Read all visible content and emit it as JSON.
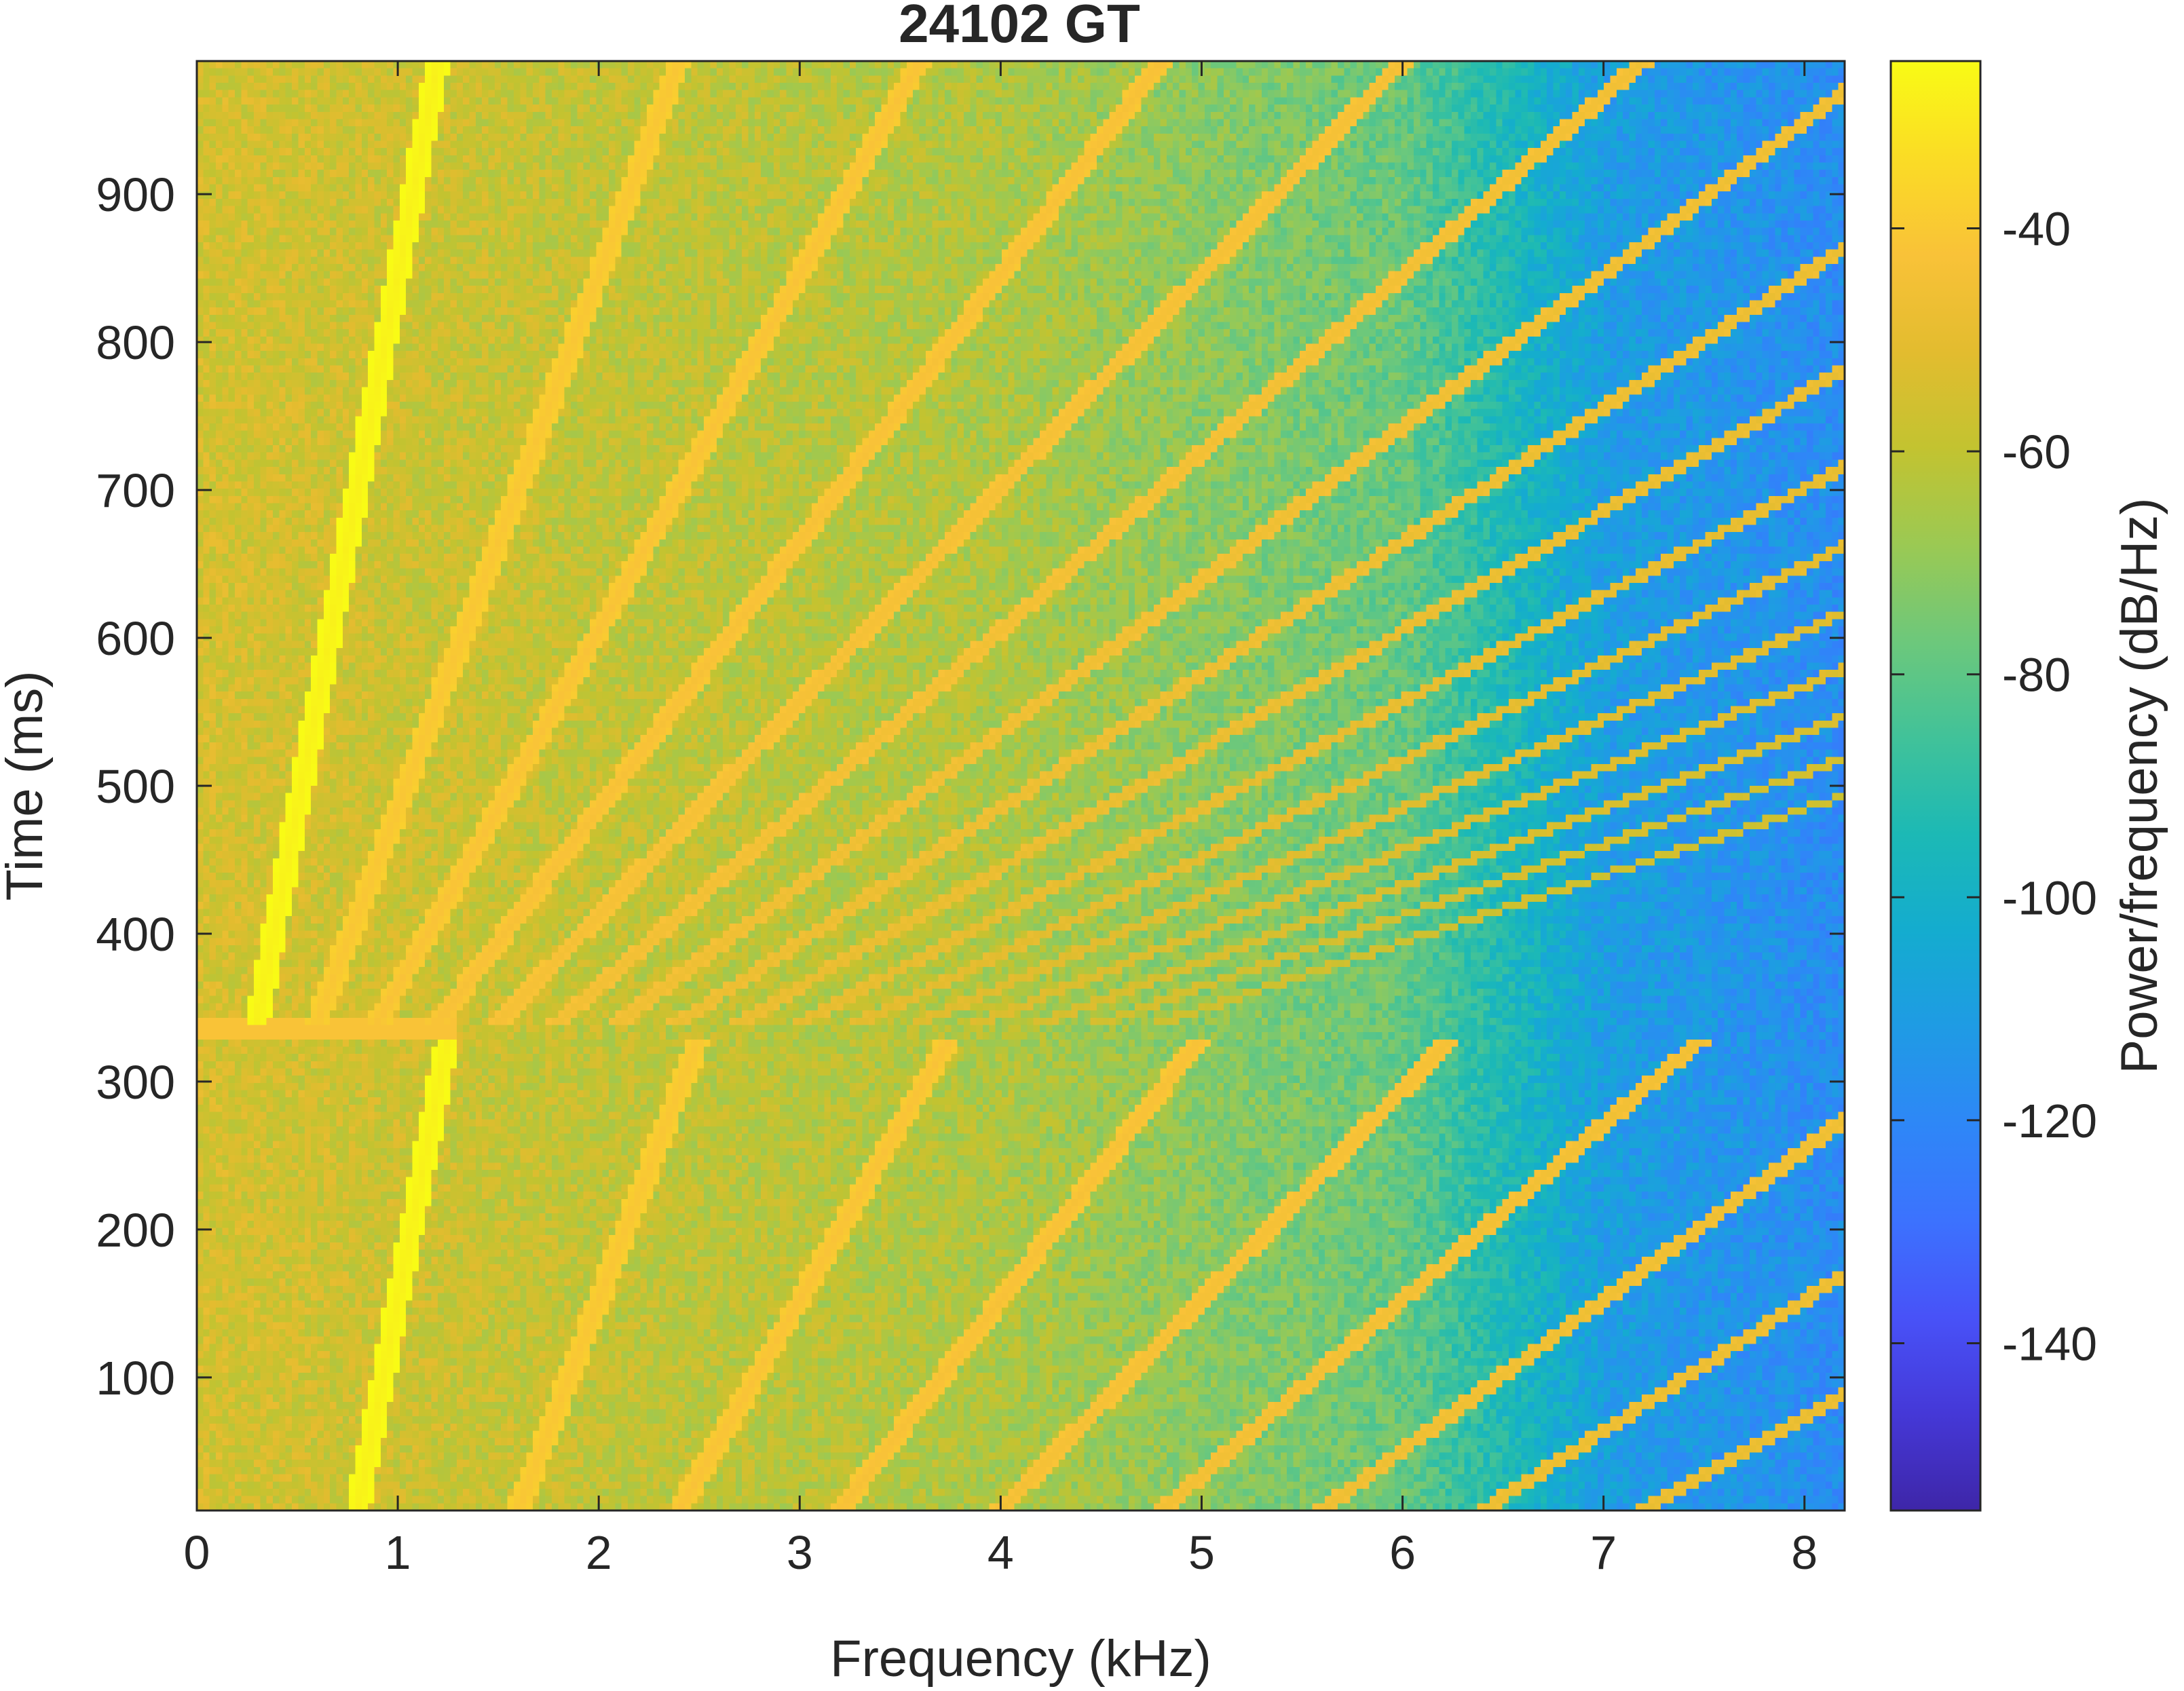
{
  "chart_data": {
    "type": "heatmap",
    "title": "24102 GT",
    "xlabel": "Frequency (kHz)",
    "ylabel": "Time (ms)",
    "xlim": [
      0,
      8.2
    ],
    "ylim": [
      10,
      990
    ],
    "xticks": [
      0,
      1,
      2,
      3,
      4,
      5,
      6,
      7,
      8
    ],
    "yticks": [
      100,
      200,
      300,
      400,
      500,
      600,
      700,
      800,
      900
    ],
    "colorbar": {
      "label": "Power/frequency (dB/Hz)",
      "range": [
        -155,
        -25
      ],
      "ticks": [
        -40,
        -60,
        -80,
        -100,
        -120,
        -140
      ],
      "colormap": [
        "#3E26A8",
        "#4538D7",
        "#4852F8",
        "#3C72FE",
        "#2E87F7",
        "#1F9BE4",
        "#14ACCF",
        "#1CB9B5",
        "#41C299",
        "#6DC87B",
        "#9BC953",
        "#C3C330",
        "#E3BC2F",
        "#F9C238",
        "#FADC25",
        "#F9FB15"
      ]
    },
    "background": {
      "description_level_db": [
        {
          "freq_khz": 0,
          "db": -55
        },
        {
          "freq_khz": 4,
          "db": -64
        },
        {
          "freq_khz": 6,
          "db": -78
        },
        {
          "freq_khz": 7,
          "db": -110
        },
        {
          "freq_khz": 8.2,
          "db": -118
        }
      ]
    },
    "series": [
      {
        "segment": "0-330 ms",
        "start_freq_khz": [
          0.8,
          1.6,
          2.4,
          3.2,
          4.0,
          4.8,
          5.6,
          6.4,
          7.2
        ],
        "end_freq_khz": [
          1.25,
          2.5,
          3.75,
          5.0,
          6.25,
          7.5,
          8.75,
          10.0,
          11.25
        ],
        "time_range_ms": [
          10,
          330
        ]
      },
      {
        "segment": "340-990 ms",
        "start_freq_khz": [
          0.3,
          0.6,
          0.9,
          1.2,
          1.5,
          1.8,
          2.1,
          2.4,
          2.7,
          3.0,
          3.3,
          3.6,
          3.9,
          4.2,
          4.5,
          4.8
        ],
        "end_freq_khz": [
          1.2,
          2.4,
          3.6,
          4.8,
          6.0,
          7.2,
          8.4,
          9.6,
          10.8,
          12.0,
          13.2,
          14.4,
          15.6,
          16.8,
          18.0,
          19.2
        ],
        "time_range_ms": [
          340,
          990
        ]
      }
    ]
  }
}
